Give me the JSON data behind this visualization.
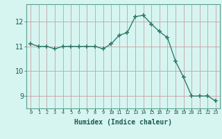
{
  "x": [
    0,
    1,
    2,
    3,
    4,
    5,
    6,
    7,
    8,
    9,
    10,
    11,
    12,
    13,
    14,
    15,
    16,
    17,
    18,
    19,
    20,
    21,
    22,
    23
  ],
  "y": [
    11.1,
    11.0,
    11.0,
    10.9,
    11.0,
    11.0,
    11.0,
    11.0,
    11.0,
    10.9,
    11.1,
    11.45,
    11.55,
    12.2,
    12.25,
    11.9,
    11.6,
    11.35,
    10.4,
    9.75,
    9.0,
    9.0,
    9.0,
    8.8
  ],
  "line_color": "#2e7d6e",
  "marker": "+",
  "marker_size": 4,
  "bg_color": "#d6f5f0",
  "grid_color": "#c8a0a0",
  "xlabel": "Humidex (Indice chaleur)",
  "ylim": [
    8.5,
    12.7
  ],
  "yticks": [
    9,
    10,
    11,
    12
  ],
  "xtick_labels": [
    "0",
    "1",
    "2",
    "3",
    "4",
    "5",
    "6",
    "7",
    "8",
    "9",
    "10",
    "11",
    "12",
    "13",
    "14",
    "15",
    "16",
    "17",
    "18",
    "19",
    "20",
    "21",
    "22",
    "23"
  ],
  "spine_color": "#5a9e8e",
  "tick_color": "#2e7d6e",
  "label_color": "#1a5a4e"
}
